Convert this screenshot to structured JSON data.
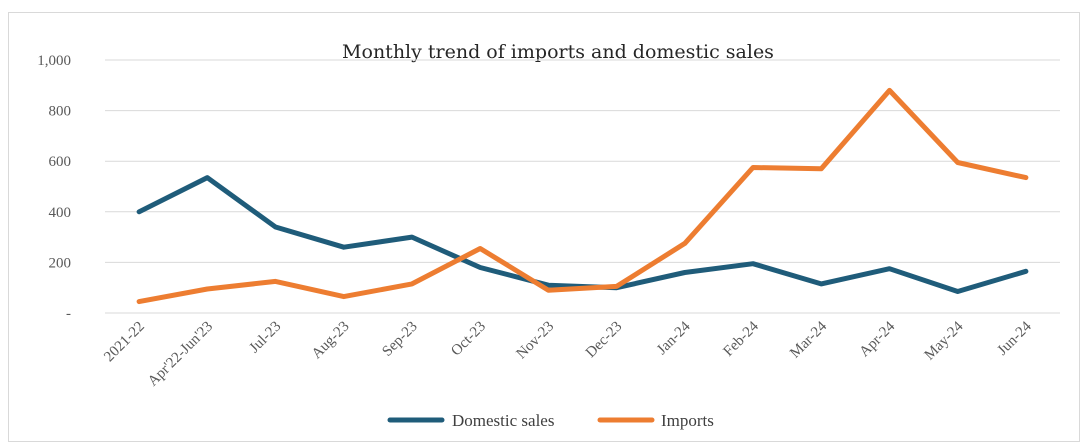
{
  "chart_data": {
    "type": "line",
    "title": "Monthly trend of imports and domestic sales",
    "xlabel": "",
    "ylabel": "",
    "categories": [
      "2021-22",
      "Apr'22-Jun'23",
      "Jul-23",
      "Aug-23",
      "Sep-23",
      "Oct-23",
      "Nov-23",
      "Dec-23",
      "Jan-24",
      "Feb-24",
      "Mar-24",
      "Apr-24",
      "May-24",
      "Jun-24"
    ],
    "y_ticks": [
      "-",
      "200",
      "400",
      "600",
      "800",
      "1,000"
    ],
    "ylim": [
      0,
      1000
    ],
    "grid": true,
    "legend_position": "bottom",
    "series": [
      {
        "name": "Domestic sales",
        "color": "#1f5c7a",
        "values": [
          400,
          535,
          340,
          260,
          300,
          180,
          110,
          100,
          160,
          195,
          115,
          175,
          85,
          165
        ]
      },
      {
        "name": "Imports",
        "color": "#ed7d31",
        "values": [
          45,
          95,
          125,
          65,
          115,
          255,
          90,
          105,
          275,
          575,
          570,
          880,
          595,
          535
        ]
      }
    ]
  }
}
